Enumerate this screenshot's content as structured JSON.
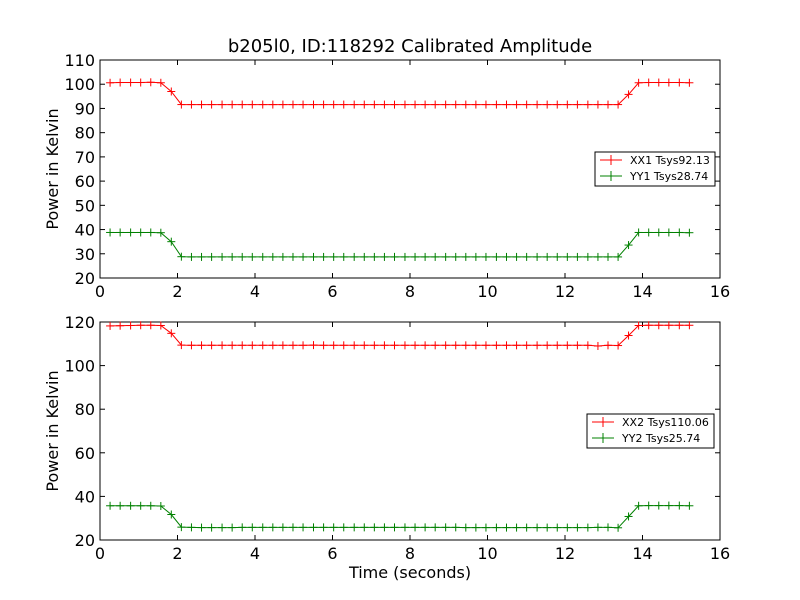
{
  "figure": {
    "title": "b205l0, ID:118292 Calibrated Amplitude"
  },
  "chart_data": [
    {
      "type": "line",
      "title": "b205l0, ID:118292 Calibrated Amplitude",
      "xlabel": "",
      "ylabel": "Power in Kelvin",
      "xlim": [
        0,
        16
      ],
      "ylim": [
        20,
        110
      ],
      "xticks": [
        "0",
        "2",
        "4",
        "6",
        "8",
        "10",
        "12",
        "14",
        "16"
      ],
      "yticks": [
        "20",
        "30",
        "40",
        "50",
        "60",
        "70",
        "80",
        "90",
        "100",
        "110"
      ],
      "grid": false,
      "legend_position": "center-right",
      "series": [
        {
          "name": "XX1 Tsys92.13",
          "color": "#ff0000",
          "marker": "+",
          "x": [
            0.26,
            0.52,
            0.79,
            1.05,
            1.31,
            1.57,
            1.84,
            2.1,
            2.36,
            2.62,
            2.88,
            3.15,
            3.41,
            3.67,
            3.93,
            4.2,
            4.46,
            4.72,
            4.98,
            5.24,
            5.51,
            5.77,
            6.03,
            6.29,
            6.56,
            6.82,
            7.08,
            7.34,
            7.6,
            7.87,
            8.13,
            8.39,
            8.65,
            8.92,
            9.18,
            9.44,
            9.7,
            9.96,
            10.23,
            10.49,
            10.75,
            11.01,
            11.28,
            11.54,
            11.8,
            12.06,
            12.32,
            12.59,
            12.85,
            13.11,
            13.37,
            13.64,
            13.9,
            14.16,
            14.42,
            14.68,
            14.95,
            15.21
          ],
          "y": [
            100.6,
            100.7,
            100.7,
            100.7,
            100.8,
            100.6,
            97.0,
            91.6,
            91.6,
            91.6,
            91.6,
            91.6,
            91.6,
            91.6,
            91.6,
            91.6,
            91.6,
            91.6,
            91.6,
            91.6,
            91.6,
            91.6,
            91.6,
            91.6,
            91.6,
            91.6,
            91.6,
            91.6,
            91.6,
            91.6,
            91.6,
            91.6,
            91.6,
            91.6,
            91.6,
            91.6,
            91.6,
            91.6,
            91.6,
            91.6,
            91.6,
            91.6,
            91.6,
            91.6,
            91.6,
            91.6,
            91.6,
            91.6,
            91.6,
            91.6,
            91.6,
            95.8,
            100.6,
            100.7,
            100.7,
            100.7,
            100.7,
            100.6
          ]
        },
        {
          "name": "YY1 Tsys28.74",
          "color": "#008000",
          "marker": "+",
          "x": [
            0.26,
            0.52,
            0.79,
            1.05,
            1.31,
            1.57,
            1.84,
            2.1,
            2.36,
            2.62,
            2.88,
            3.15,
            3.41,
            3.67,
            3.93,
            4.2,
            4.46,
            4.72,
            4.98,
            5.24,
            5.51,
            5.77,
            6.03,
            6.29,
            6.56,
            6.82,
            7.08,
            7.34,
            7.6,
            7.87,
            8.13,
            8.39,
            8.65,
            8.92,
            9.18,
            9.44,
            9.7,
            9.96,
            10.23,
            10.49,
            10.75,
            11.01,
            11.28,
            11.54,
            11.8,
            12.06,
            12.32,
            12.59,
            12.85,
            13.11,
            13.37,
            13.64,
            13.9,
            14.16,
            14.42,
            14.68,
            14.95,
            15.21
          ],
          "y": [
            38.8,
            38.8,
            38.8,
            38.8,
            38.8,
            38.7,
            35.0,
            28.8,
            28.7,
            28.7,
            28.7,
            28.7,
            28.7,
            28.7,
            28.7,
            28.7,
            28.7,
            28.7,
            28.7,
            28.7,
            28.7,
            28.7,
            28.7,
            28.7,
            28.7,
            28.7,
            28.7,
            28.7,
            28.7,
            28.7,
            28.7,
            28.7,
            28.7,
            28.7,
            28.7,
            28.7,
            28.7,
            28.7,
            28.7,
            28.7,
            28.7,
            28.7,
            28.7,
            28.7,
            28.7,
            28.7,
            28.7,
            28.7,
            28.7,
            28.7,
            28.7,
            33.6,
            38.8,
            38.8,
            38.8,
            38.8,
            38.8,
            38.7
          ]
        }
      ]
    },
    {
      "type": "line",
      "title": "",
      "xlabel": "Time (seconds)",
      "ylabel": "Power in Kelvin",
      "xlim": [
        0,
        16
      ],
      "ylim": [
        20,
        120
      ],
      "xticks": [
        "0",
        "2",
        "4",
        "6",
        "8",
        "10",
        "12",
        "14",
        "16"
      ],
      "yticks": [
        "20",
        "40",
        "60",
        "80",
        "100",
        "120"
      ],
      "grid": false,
      "legend_position": "center-right",
      "series": [
        {
          "name": "XX2 Tsys110.06",
          "color": "#ff0000",
          "marker": "+",
          "x": [
            0.26,
            0.52,
            0.79,
            1.05,
            1.31,
            1.57,
            1.84,
            2.1,
            2.36,
            2.62,
            2.88,
            3.15,
            3.41,
            3.67,
            3.93,
            4.2,
            4.46,
            4.72,
            4.98,
            5.24,
            5.51,
            5.77,
            6.03,
            6.29,
            6.56,
            6.82,
            7.08,
            7.34,
            7.6,
            7.87,
            8.13,
            8.39,
            8.65,
            8.92,
            9.18,
            9.44,
            9.7,
            9.96,
            10.23,
            10.49,
            10.75,
            11.01,
            11.28,
            11.54,
            11.8,
            12.06,
            12.32,
            12.59,
            12.85,
            13.11,
            13.37,
            13.64,
            13.9,
            14.16,
            14.42,
            14.68,
            14.95,
            15.21
          ],
          "y": [
            118.2,
            118.3,
            118.4,
            118.5,
            118.5,
            118.4,
            114.8,
            109.4,
            109.3,
            109.3,
            109.3,
            109.3,
            109.3,
            109.3,
            109.3,
            109.3,
            109.3,
            109.3,
            109.3,
            109.3,
            109.4,
            109.3,
            109.3,
            109.3,
            109.3,
            109.3,
            109.3,
            109.3,
            109.3,
            109.3,
            109.3,
            109.3,
            109.3,
            109.3,
            109.3,
            109.3,
            109.3,
            109.3,
            109.3,
            109.3,
            109.3,
            109.3,
            109.3,
            109.3,
            109.3,
            109.3,
            109.3,
            109.3,
            109.0,
            109.3,
            109.2,
            113.8,
            118.4,
            118.5,
            118.5,
            118.5,
            118.5,
            118.5
          ]
        },
        {
          "name": "YY2 Tsys25.74",
          "color": "#008000",
          "marker": "+",
          "x": [
            0.26,
            0.52,
            0.79,
            1.05,
            1.31,
            1.57,
            1.84,
            2.1,
            2.36,
            2.62,
            2.88,
            3.15,
            3.41,
            3.67,
            3.93,
            4.2,
            4.46,
            4.72,
            4.98,
            5.24,
            5.51,
            5.77,
            6.03,
            6.29,
            6.56,
            6.82,
            7.08,
            7.34,
            7.6,
            7.87,
            8.13,
            8.39,
            8.65,
            8.92,
            9.18,
            9.44,
            9.7,
            9.96,
            10.23,
            10.49,
            10.75,
            11.01,
            11.28,
            11.54,
            11.8,
            12.06,
            12.32,
            12.59,
            12.85,
            13.11,
            13.37,
            13.64,
            13.9,
            14.16,
            14.42,
            14.68,
            14.95,
            15.21
          ],
          "y": [
            35.7,
            35.7,
            35.7,
            35.7,
            35.7,
            35.6,
            31.7,
            25.9,
            25.8,
            25.7,
            25.7,
            25.7,
            25.7,
            25.8,
            25.8,
            25.8,
            25.8,
            25.8,
            25.8,
            25.8,
            25.8,
            25.8,
            25.8,
            25.8,
            25.8,
            25.8,
            25.8,
            25.8,
            25.8,
            25.8,
            25.8,
            25.8,
            25.8,
            25.8,
            25.8,
            25.7,
            25.7,
            25.7,
            25.7,
            25.7,
            25.7,
            25.7,
            25.7,
            25.7,
            25.7,
            25.7,
            25.7,
            25.7,
            25.8,
            25.8,
            25.6,
            30.8,
            35.7,
            35.8,
            35.8,
            35.8,
            35.8,
            35.7
          ]
        }
      ]
    }
  ]
}
